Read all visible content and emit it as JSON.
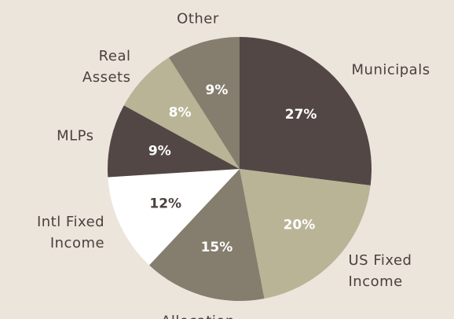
{
  "chart_data": {
    "type": "pie",
    "categories": [
      "Municipals",
      "US Fixed\nIncome",
      "Allocation",
      "Intl Fixed\nIncome",
      "MLPs",
      "Real\nAssets",
      "Other"
    ],
    "values": [
      27,
      20,
      15,
      12,
      9,
      8,
      9
    ],
    "value_labels": [
      "27%",
      "20%",
      "15%",
      "12%",
      "9%",
      "8%",
      "9%"
    ],
    "colors": [
      "#524745",
      "#b9b496",
      "#857d6d",
      "#ffffff",
      "#524745",
      "#b9b496",
      "#857d6d"
    ]
  }
}
